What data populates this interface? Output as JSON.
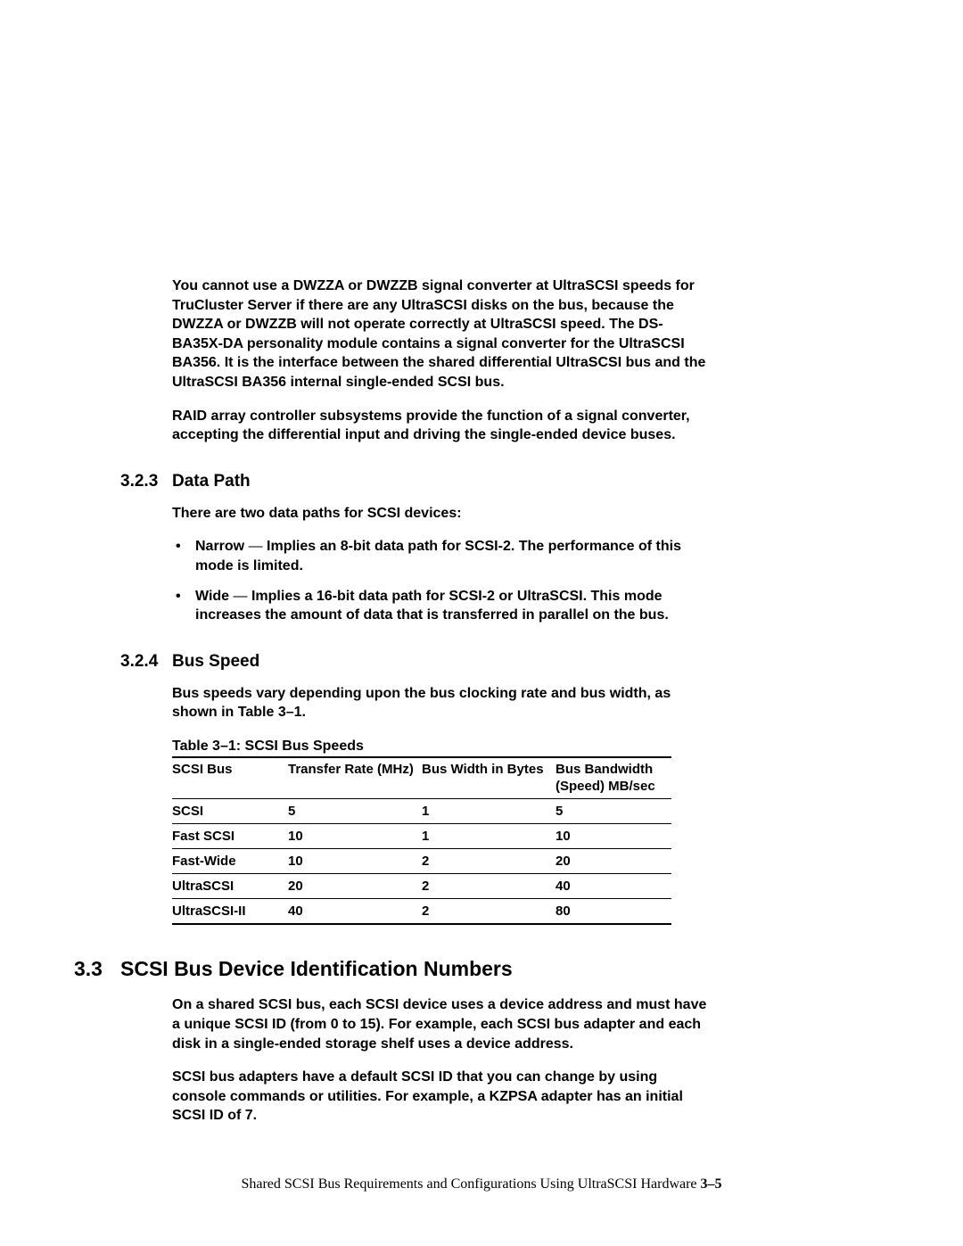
{
  "para1": "You cannot use a DWZZA or DWZZB signal converter at UltraSCSI speeds for TruCluster Server if there are any UltraSCSI disks on the bus, because the DWZZA or DWZZB will not operate correctly at UltraSCSI speed. The DS-BA35X-DA personality module contains a signal converter for the UltraSCSI BA356. It is the interface between the shared differential UltraSCSI bus and the UltraSCSI BA356 internal single-ended SCSI bus.",
  "para2": "RAID array controller subsystems provide the function of a signal converter, accepting the differential input and driving the single-ended device buses.",
  "sec323": {
    "num": "3.2.3",
    "title": "Data Path"
  },
  "para3": "There are two data paths for SCSI devices:",
  "bullets323": [
    {
      "lead": "Narrow",
      "rest": "Implies an 8-bit data path for SCSI-2. The performance of this mode is limited."
    },
    {
      "lead": "Wide",
      "rest": "Implies a 16-bit data path for SCSI-2 or UltraSCSI. This mode increases the amount of data that is transferred in parallel on the bus."
    }
  ],
  "sec324": {
    "num": "3.2.4",
    "title": "Bus Speed"
  },
  "para4": "Bus speeds vary depending upon the bus clocking rate and bus width, as shown in Table 3–1.",
  "table": {
    "caption": "Table 3–1: SCSI Bus Speeds",
    "headers": [
      "SCSI Bus",
      "Transfer Rate (MHz)",
      "Bus Width in Bytes",
      "Bus Bandwidth (Speed) MB/sec"
    ],
    "rows": [
      [
        "SCSI",
        "5",
        "1",
        "5"
      ],
      [
        "Fast SCSI",
        "10",
        "1",
        "10"
      ],
      [
        "Fast-Wide",
        "10",
        "2",
        "20"
      ],
      [
        "UltraSCSI",
        "20",
        "2",
        "40"
      ],
      [
        "UltraSCSI-II",
        "40",
        "2",
        "80"
      ]
    ]
  },
  "sec33": {
    "num": "3.3",
    "title": "SCSI Bus Device Identification Numbers"
  },
  "para5": "On a shared SCSI bus, each SCSI device uses a device address and must have a unique SCSI ID (from 0 to 15). For example, each SCSI bus adapter and each disk in a single-ended storage shelf uses a device address.",
  "para6": "SCSI bus adapters have a default SCSI ID that you can change by using console commands or utilities. For example, a KZPSA adapter has an initial SCSI ID of 7.",
  "footer": {
    "text": "Shared SCSI Bus Requirements and Configurations Using UltraSCSI Hardware",
    "page": "3–5"
  }
}
